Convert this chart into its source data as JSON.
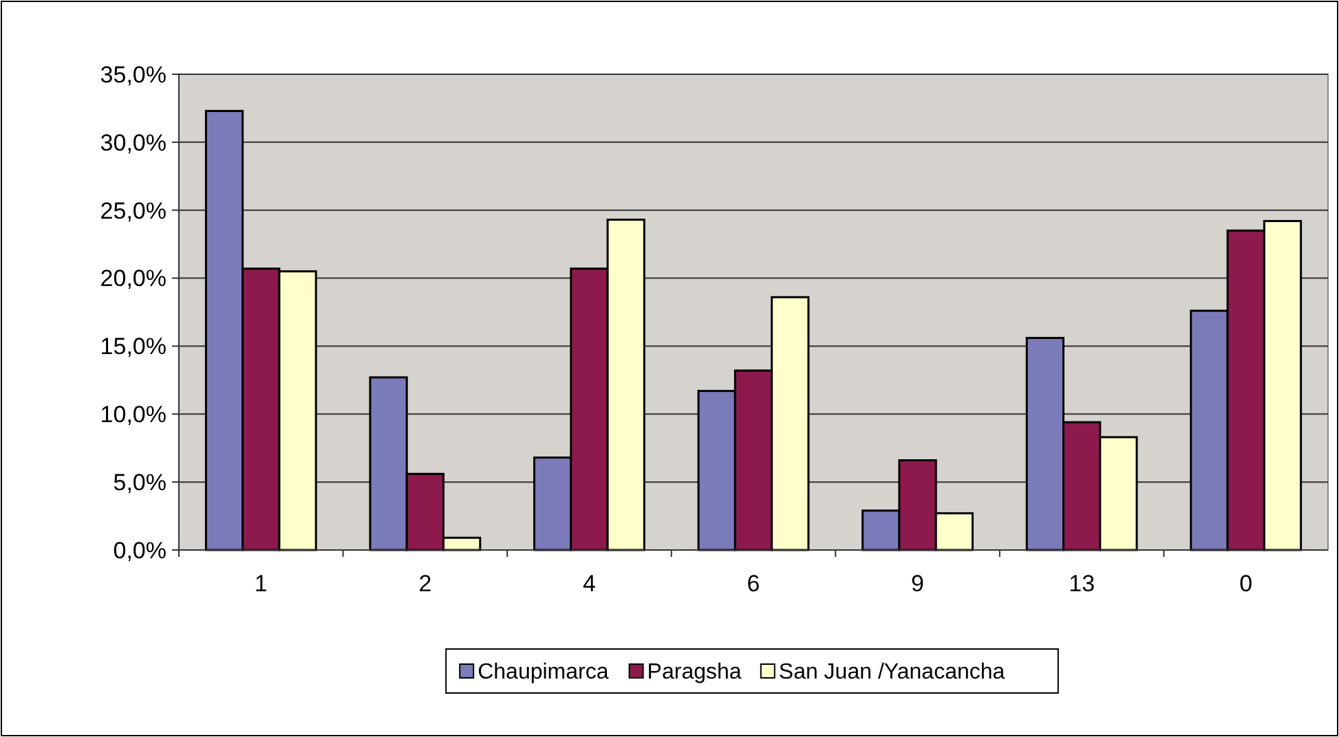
{
  "chart_data": {
    "type": "bar",
    "categories": [
      "1",
      "2",
      "4",
      "6",
      "9",
      "13",
      "0"
    ],
    "series": [
      {
        "name": "Chaupimarca",
        "color": "#7b7bba",
        "values": [
          32.3,
          12.7,
          6.8,
          11.7,
          2.9,
          15.6,
          17.6
        ]
      },
      {
        "name": "Paragsha",
        "color": "#8c1a4c",
        "values": [
          20.7,
          5.6,
          20.7,
          13.2,
          6.6,
          9.4,
          23.5
        ]
      },
      {
        "name": "San Juan /Yanacancha",
        "color": "#ffffcc",
        "values": [
          20.5,
          0.9,
          24.3,
          18.6,
          2.7,
          8.3,
          24.2
        ]
      }
    ],
    "ylim": [
      0,
      35
    ],
    "yticks": [
      {
        "value": 0,
        "label": "0,0%"
      },
      {
        "value": 5,
        "label": "5,0%"
      },
      {
        "value": 10,
        "label": "10,0%"
      },
      {
        "value": 15,
        "label": "15,0%"
      },
      {
        "value": 20,
        "label": "20,0%"
      },
      {
        "value": 25,
        "label": "25,0%"
      },
      {
        "value": 30,
        "label": "30,0%"
      },
      {
        "value": 35,
        "label": "35,0%"
      }
    ],
    "grid": "y",
    "legend": "bottom"
  }
}
